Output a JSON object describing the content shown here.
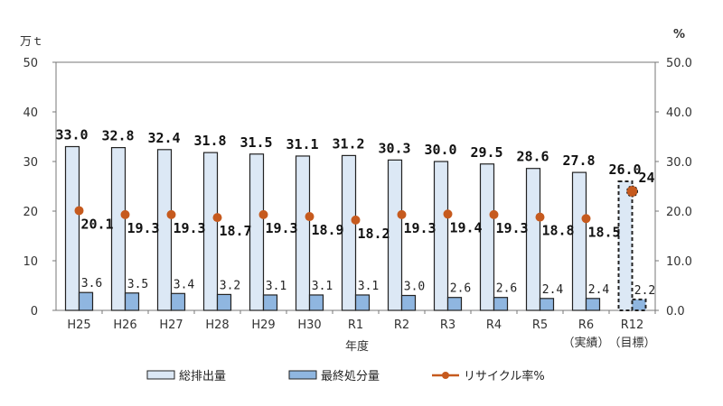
{
  "chart_data": {
    "type": "bar",
    "yunit_left": "万ｔ",
    "yunit_right": "%",
    "xlabel": "年度",
    "categories": [
      "H25",
      "H26",
      "H27",
      "H28",
      "H29",
      "H30",
      "R1",
      "R2",
      "R3",
      "R4",
      "R5",
      "R6",
      "R12"
    ],
    "category_sublabels": {
      "R6": "（実績）",
      "R12": "（目標）"
    },
    "ylim": [
      0,
      50
    ],
    "yticks_left": [
      "0",
      "10",
      "20",
      "30",
      "40",
      "50"
    ],
    "yticks_right": [
      "0.0",
      "10.0",
      "20.0",
      "30.0",
      "40.0",
      "50.0"
    ],
    "series": [
      {
        "name": "総排出量",
        "type": "bar",
        "color": "#dce8f5",
        "values": [
          33.0,
          32.8,
          32.4,
          31.8,
          31.5,
          31.1,
          31.2,
          30.3,
          30.0,
          29.5,
          28.6,
          27.8,
          26.0
        ],
        "labels": [
          "33.0",
          "32.8",
          "32.4",
          "31.8",
          "31.5",
          "31.1",
          "31.2",
          "30.3",
          "30.0",
          "29.5",
          "28.6",
          "27.8",
          "26.0"
        ]
      },
      {
        "name": "最終処分量",
        "type": "bar",
        "color": "#8fb6e0",
        "values": [
          3.6,
          3.5,
          3.4,
          3.2,
          3.1,
          3.1,
          3.1,
          3.0,
          2.6,
          2.6,
          2.4,
          2.4,
          2.2
        ],
        "labels": [
          "3.6",
          "3.5",
          "3.4",
          "3.2",
          "3.1",
          "3.1",
          "3.1",
          "3.0",
          "2.6",
          "2.6",
          "2.4",
          "2.4",
          "2.2"
        ]
      },
      {
        "name": "リサイクル率%",
        "type": "line",
        "axis": "right",
        "color": "#c65a1e",
        "values": [
          20.1,
          19.3,
          19.3,
          18.7,
          19.3,
          18.9,
          18.2,
          19.3,
          19.4,
          19.3,
          18.8,
          18.5,
          24
        ],
        "labels": [
          "20.1",
          "19.3",
          "19.3",
          "18.7",
          "19.3",
          "18.9",
          "18.2",
          "19.3",
          "19.4",
          "19.3",
          "18.8",
          "18.5",
          "24"
        ]
      }
    ],
    "target_category": "R12",
    "legend_position": "bottom",
    "grid": false
  }
}
